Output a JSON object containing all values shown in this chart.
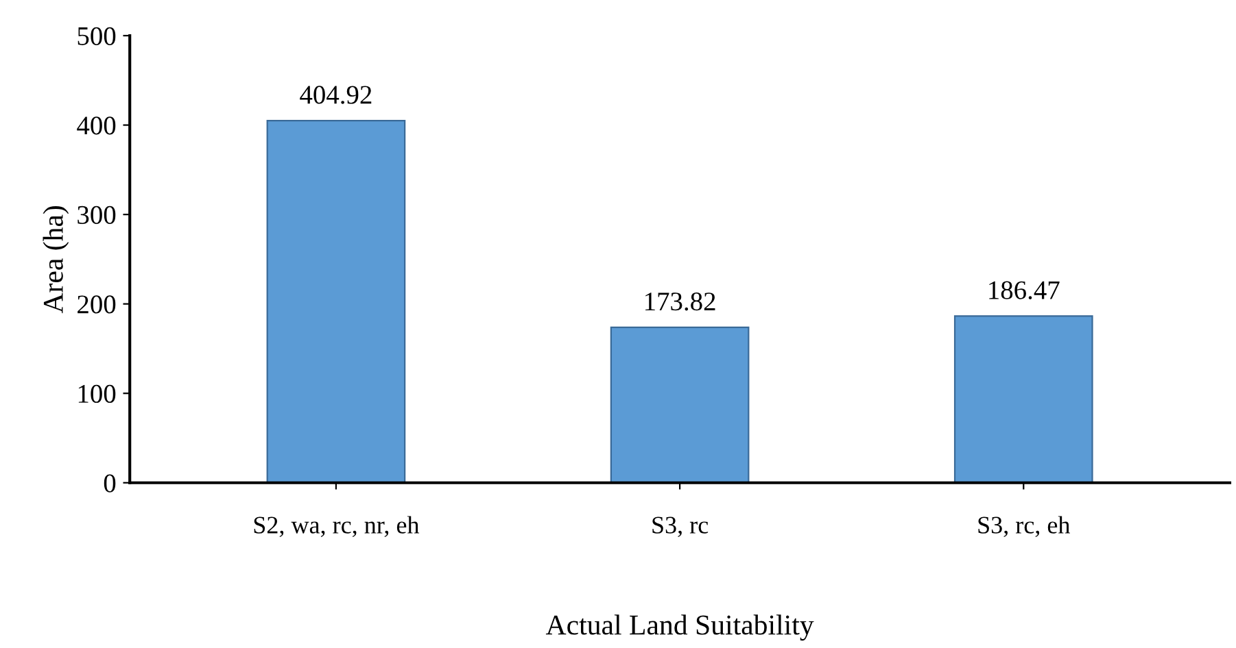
{
  "chart_data": {
    "type": "bar",
    "xlabel": "Actual Land Suitability",
    "ylabel": "Area (ha)",
    "categories": [
      "S2, wa, rc, nr, eh",
      "S3, rc",
      "S3, rc, eh"
    ],
    "values": [
      404.92,
      173.82,
      186.47
    ],
    "color": "#5b9bd5",
    "ylim": [
      0,
      500
    ],
    "yticks": [
      0,
      100,
      200,
      300,
      400,
      500
    ],
    "grid": false,
    "data_labels": true
  }
}
